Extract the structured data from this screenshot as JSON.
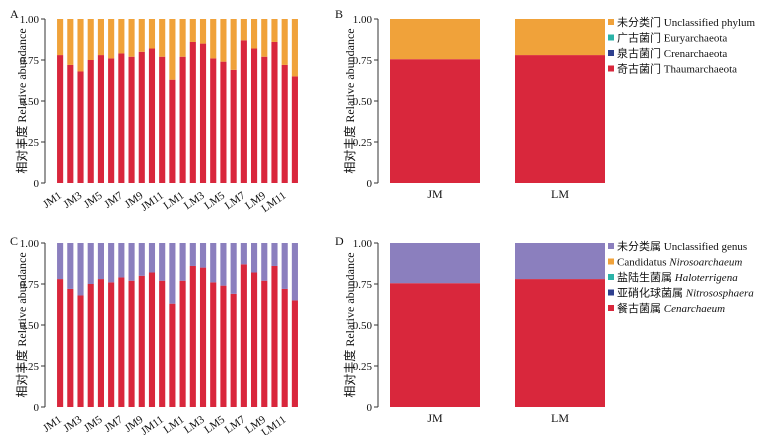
{
  "chart_data": [
    {
      "panel": "A",
      "type": "bar",
      "stacked": true,
      "ylabel": "相对丰度  Relative abundance",
      "ylim": [
        0,
        1.0
      ],
      "yticks": [
        "0",
        "0.25",
        "0.50",
        "0.75",
        "1.00"
      ],
      "categories": [
        "JM1",
        "JM2",
        "JM3",
        "JM4",
        "JM5",
        "JM6",
        "JM7",
        "JM8",
        "JM9",
        "JM10",
        "JM11",
        "JM12",
        "LM1",
        "LM2",
        "LM3",
        "LM4",
        "LM5",
        "LM6",
        "LM7",
        "LM8",
        "LM9",
        "LM10",
        "LM11",
        "LM12"
      ],
      "tick_labels": [
        "JM1",
        "JM3",
        "JM5",
        "JM7",
        "JM9",
        "JM11",
        "LM1",
        "LM3",
        "LM5",
        "LM7",
        "LM9",
        "LM11"
      ],
      "series": [
        {
          "name": "奇古菌门 Thaumarchaeota",
          "color": "#d9273c",
          "values": [
            0.78,
            0.72,
            0.68,
            0.75,
            0.78,
            0.76,
            0.79,
            0.77,
            0.8,
            0.82,
            0.77,
            0.63,
            0.77,
            0.86,
            0.85,
            0.76,
            0.74,
            0.69,
            0.87,
            0.82,
            0.77,
            0.86,
            0.72,
            0.65
          ]
        },
        {
          "name": "未分类门 Unclassified phylum",
          "color": "#f0a23a",
          "values": [
            0.22,
            0.28,
            0.32,
            0.25,
            0.22,
            0.24,
            0.21,
            0.23,
            0.2,
            0.18,
            0.23,
            0.37,
            0.23,
            0.14,
            0.15,
            0.24,
            0.26,
            0.31,
            0.13,
            0.18,
            0.23,
            0.14,
            0.28,
            0.35
          ]
        }
      ]
    },
    {
      "panel": "B",
      "type": "bar",
      "stacked": true,
      "ylabel": "相对丰度  Relative abundance",
      "ylim": [
        0,
        1.0
      ],
      "yticks": [
        "0",
        "0.25",
        "0.50",
        "0.75",
        "1.00"
      ],
      "categories": [
        "JM",
        "LM"
      ],
      "series": [
        {
          "name": "奇古菌门 Thaumarchaeota",
          "color": "#d9273c",
          "values": [
            0.755,
            0.78
          ]
        },
        {
          "name": "未分类门 Unclassified phylum",
          "color": "#f0a23a",
          "values": [
            0.245,
            0.22
          ]
        }
      ],
      "legend": [
        {
          "label": "未分类门 Unclassified phylum",
          "color": "#f0a23a"
        },
        {
          "label": "广古菌门 Euryarchaeota",
          "color": "#2bb3a8"
        },
        {
          "label": "泉古菌门 Crenarchaeota",
          "color": "#2e3f8f"
        },
        {
          "label": "奇古菌门 Thaumarchaeota",
          "color": "#d9273c"
        }
      ],
      "legend_position": "right"
    },
    {
      "panel": "C",
      "type": "bar",
      "stacked": true,
      "ylabel": "相对丰度  Relative abundance",
      "ylim": [
        0,
        1.0
      ],
      "yticks": [
        "0",
        "0.25",
        "0.50",
        "0.75",
        "1.00"
      ],
      "categories": [
        "JM1",
        "JM2",
        "JM3",
        "JM4",
        "JM5",
        "JM6",
        "JM7",
        "JM8",
        "JM9",
        "JM10",
        "JM11",
        "JM12",
        "LM1",
        "LM2",
        "LM3",
        "LM4",
        "LM5",
        "LM6",
        "LM7",
        "LM8",
        "LM9",
        "LM10",
        "LM11",
        "LM12"
      ],
      "tick_labels": [
        "JM1",
        "JM3",
        "JM5",
        "JM7",
        "JM9",
        "JM11",
        "LM1",
        "LM3",
        "LM5",
        "LM7",
        "LM9",
        "LM11"
      ],
      "series": [
        {
          "name": "餐古菌属 Cenarchaeum",
          "color": "#d9273c",
          "values": [
            0.78,
            0.72,
            0.68,
            0.75,
            0.78,
            0.76,
            0.79,
            0.77,
            0.8,
            0.82,
            0.77,
            0.63,
            0.77,
            0.86,
            0.85,
            0.76,
            0.74,
            0.69,
            0.87,
            0.82,
            0.77,
            0.86,
            0.72,
            0.65
          ]
        },
        {
          "name": "未分类属 Unclassified genus",
          "color": "#8b7fbe",
          "values": [
            0.22,
            0.28,
            0.32,
            0.25,
            0.22,
            0.24,
            0.21,
            0.23,
            0.2,
            0.18,
            0.23,
            0.37,
            0.23,
            0.14,
            0.15,
            0.24,
            0.26,
            0.31,
            0.13,
            0.18,
            0.23,
            0.14,
            0.28,
            0.35
          ]
        }
      ]
    },
    {
      "panel": "D",
      "type": "bar",
      "stacked": true,
      "ylabel": "相对丰度  Relative abundance",
      "ylim": [
        0,
        1.0
      ],
      "yticks": [
        "0",
        "0.25",
        "0.50",
        "0.75",
        "1.00"
      ],
      "categories": [
        "JM",
        "LM"
      ],
      "series": [
        {
          "name": "餐古菌属 Cenarchaeum",
          "color": "#d9273c",
          "values": [
            0.755,
            0.78
          ]
        },
        {
          "name": "未分类属 Unclassified genus",
          "color": "#8b7fbe",
          "values": [
            0.245,
            0.22
          ]
        }
      ],
      "legend": [
        {
          "label": "未分类属 Unclassified genus",
          "color": "#8b7fbe",
          "cn": "未分类属",
          "en": "Unclassified genus",
          "italic": false
        },
        {
          "label": "Candidatus Nirosoarchaeum",
          "color": "#f0a23a",
          "cn": "Candidatus",
          "en": "Nirosoarchaeum",
          "italic": true
        },
        {
          "label": "盐陆生菌属 Haloterrigena",
          "color": "#2bb3a8",
          "cn": "盐陆生菌属",
          "en": "Haloterrigena",
          "italic": true
        },
        {
          "label": "亚硝化球菌属 Nitrososphaera",
          "color": "#2e3f8f",
          "cn": "亚硝化球菌属",
          "en": "Nitrososphaera",
          "italic": true
        },
        {
          "label": "餐古菌属 Cenarchaeum",
          "color": "#d9273c",
          "cn": "餐古菌属",
          "en": "Cenarchaeum",
          "italic": true
        }
      ],
      "legend_position": "right"
    }
  ]
}
